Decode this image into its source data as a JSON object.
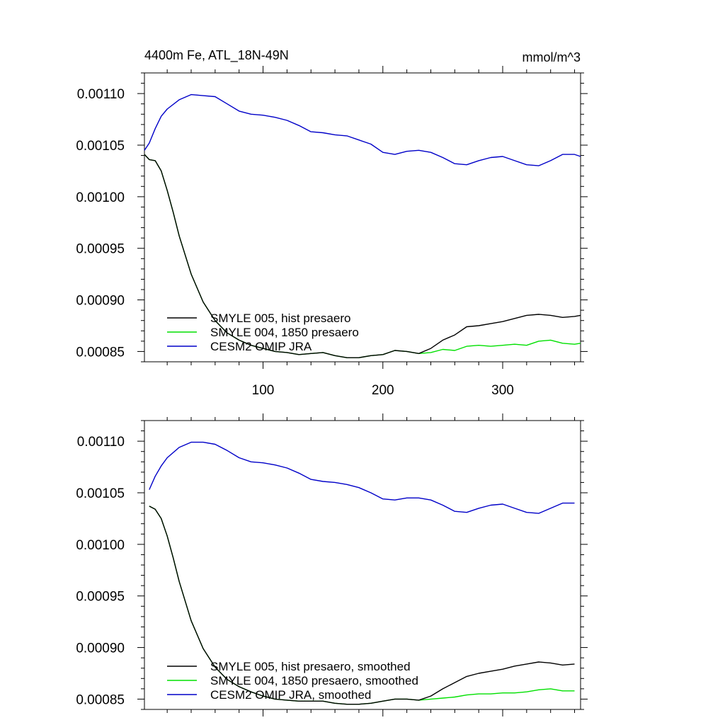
{
  "figure": {
    "left_title": "4400m Fe, ATL_18N-49N",
    "right_title": "mmol/m^3"
  },
  "chart_data": [
    {
      "type": "line",
      "title": "4400m Fe, ATL_18N-49N",
      "units": "mmol/m^3",
      "xlabel": "",
      "ylabel": "",
      "xlim": [
        1,
        365
      ],
      "ylim": [
        0.00084,
        0.00112
      ],
      "x_ticks": [
        100,
        200,
        300
      ],
      "x_tick_labels": [
        "100",
        "200",
        "300"
      ],
      "y_ticks": [
        0.00085,
        0.0009,
        0.00095,
        0.001,
        0.00105,
        0.0011
      ],
      "y_tick_labels": [
        "0.00085",
        "0.00090",
        "0.00095",
        "0.00100",
        "0.00105",
        "0.00110"
      ],
      "grid": false,
      "legend_position": "bottom-left",
      "series": [
        {
          "name": "SMYLE 005, hist presaero",
          "color": "#000000",
          "x": [
            1,
            5,
            10,
            15,
            20,
            25,
            30,
            40,
            50,
            60,
            70,
            80,
            90,
            100,
            110,
            120,
            130,
            140,
            150,
            160,
            170,
            180,
            190,
            200,
            210,
            220,
            230,
            240,
            250,
            260,
            270,
            280,
            290,
            300,
            310,
            320,
            330,
            340,
            350,
            360,
            365
          ],
          "y": [
            0.001041,
            0.001036,
            0.001035,
            0.001025,
            0.001006,
            0.000985,
            0.000962,
            0.000925,
            0.000898,
            0.00088,
            0.000868,
            0.000861,
            0.000856,
            0.000853,
            0.00085,
            0.000849,
            0.000847,
            0.000848,
            0.000849,
            0.000846,
            0.000844,
            0.000844,
            0.000846,
            0.000847,
            0.000851,
            0.00085,
            0.000848,
            0.000853,
            0.000861,
            0.000866,
            0.000874,
            0.000875,
            0.000877,
            0.000879,
            0.000882,
            0.000885,
            0.000886,
            0.000885,
            0.000883,
            0.000884,
            0.000885
          ]
        },
        {
          "name": "SMYLE 004, 1850 presaero",
          "color": "#00e000",
          "x": [
            1,
            5,
            10,
            15,
            20,
            25,
            30,
            40,
            50,
            60,
            70,
            80,
            90,
            100,
            110,
            120,
            130,
            140,
            150,
            160,
            170,
            180,
            190,
            200,
            210,
            220,
            230,
            240,
            250,
            260,
            270,
            280,
            290,
            300,
            310,
            320,
            330,
            340,
            350,
            360,
            365
          ],
          "y": [
            0.001041,
            0.001036,
            0.001035,
            0.001025,
            0.001006,
            0.000985,
            0.000962,
            0.000925,
            0.000898,
            0.00088,
            0.000868,
            0.000861,
            0.000856,
            0.000853,
            0.00085,
            0.000849,
            0.000847,
            0.000848,
            0.000849,
            0.000846,
            0.000844,
            0.000844,
            0.000846,
            0.000847,
            0.000851,
            0.00085,
            0.000848,
            0.000849,
            0.000852,
            0.000851,
            0.000855,
            0.000856,
            0.000855,
            0.000856,
            0.000857,
            0.000856,
            0.00086,
            0.000861,
            0.000858,
            0.000857,
            0.000858
          ]
        },
        {
          "name": "CESM2 OMIP JRA",
          "color": "#0000c8",
          "x": [
            1,
            5,
            10,
            15,
            20,
            30,
            40,
            50,
            60,
            70,
            80,
            90,
            100,
            110,
            120,
            130,
            140,
            150,
            160,
            170,
            180,
            190,
            200,
            210,
            220,
            230,
            240,
            250,
            260,
            270,
            280,
            290,
            300,
            310,
            320,
            330,
            340,
            350,
            360,
            365
          ],
          "y": [
            0.001045,
            0.001052,
            0.001066,
            0.001078,
            0.001085,
            0.001094,
            0.001099,
            0.001098,
            0.001097,
            0.00109,
            0.001083,
            0.00108,
            0.001079,
            0.001077,
            0.001074,
            0.001069,
            0.001063,
            0.001062,
            0.00106,
            0.001059,
            0.001055,
            0.001051,
            0.001043,
            0.001041,
            0.001044,
            0.001045,
            0.001043,
            0.001038,
            0.001032,
            0.001031,
            0.001035,
            0.001038,
            0.001039,
            0.001035,
            0.001031,
            0.00103,
            0.001035,
            0.001041,
            0.001041,
            0.001039
          ]
        }
      ]
    },
    {
      "type": "line",
      "title": "",
      "xlabel": "",
      "ylabel": "",
      "xlim": [
        1,
        365
      ],
      "ylim": [
        0.00084,
        0.00112
      ],
      "x_ticks": [
        100,
        200,
        300
      ],
      "y_ticks": [
        0.00085,
        0.0009,
        0.00095,
        0.001,
        0.00105,
        0.0011
      ],
      "y_tick_labels": [
        "0.00085",
        "0.00090",
        "0.00095",
        "0.00100",
        "0.00105",
        "0.00110"
      ],
      "grid": false,
      "legend_position": "bottom-left",
      "series": [
        {
          "name": "SMYLE 005, hist presaero, smoothed",
          "color": "#000000",
          "x": [
            5,
            10,
            15,
            20,
            25,
            30,
            40,
            50,
            60,
            70,
            80,
            90,
            100,
            110,
            120,
            130,
            140,
            150,
            160,
            170,
            180,
            190,
            200,
            210,
            220,
            230,
            240,
            250,
            260,
            270,
            280,
            290,
            300,
            310,
            320,
            330,
            340,
            350,
            360
          ],
          "y": [
            0.001037,
            0.001034,
            0.001025,
            0.001008,
            0.000987,
            0.000964,
            0.000926,
            0.000899,
            0.000881,
            0.000869,
            0.000862,
            0.000857,
            0.000853,
            0.00085,
            0.000849,
            0.000848,
            0.000848,
            0.000848,
            0.000846,
            0.000845,
            0.000845,
            0.000846,
            0.000848,
            0.00085,
            0.00085,
            0.000849,
            0.000853,
            0.00086,
            0.000866,
            0.000872,
            0.000875,
            0.000877,
            0.000879,
            0.000882,
            0.000884,
            0.000886,
            0.000885,
            0.000883,
            0.000884
          ]
        },
        {
          "name": "SMYLE 004, 1850 presaero, smoothed",
          "color": "#00e000",
          "x": [
            5,
            10,
            15,
            20,
            25,
            30,
            40,
            50,
            60,
            70,
            80,
            90,
            100,
            110,
            120,
            130,
            140,
            150,
            160,
            170,
            180,
            190,
            200,
            210,
            220,
            230,
            240,
            250,
            260,
            270,
            280,
            290,
            300,
            310,
            320,
            330,
            340,
            350,
            360
          ],
          "y": [
            0.001037,
            0.001034,
            0.001025,
            0.001008,
            0.000987,
            0.000964,
            0.000926,
            0.000899,
            0.000881,
            0.000869,
            0.000862,
            0.000857,
            0.000853,
            0.00085,
            0.000849,
            0.000848,
            0.000848,
            0.000848,
            0.000846,
            0.000845,
            0.000845,
            0.000846,
            0.000848,
            0.00085,
            0.00085,
            0.000849,
            0.00085,
            0.000851,
            0.000852,
            0.000854,
            0.000855,
            0.000855,
            0.000856,
            0.000856,
            0.000857,
            0.000859,
            0.00086,
            0.000858,
            0.000858
          ]
        },
        {
          "name": "CESM2 OMIP JRA, smoothed",
          "color": "#0000c8",
          "x": [
            5,
            10,
            15,
            20,
            30,
            40,
            50,
            60,
            70,
            80,
            90,
            100,
            110,
            120,
            130,
            140,
            150,
            160,
            170,
            180,
            190,
            200,
            210,
            220,
            230,
            240,
            250,
            260,
            270,
            280,
            290,
            300,
            310,
            320,
            330,
            340,
            350,
            360
          ],
          "y": [
            0.001053,
            0.001066,
            0.001076,
            0.001084,
            0.001094,
            0.001099,
            0.001099,
            0.001097,
            0.001091,
            0.001084,
            0.00108,
            0.001079,
            0.001077,
            0.001074,
            0.001069,
            0.001063,
            0.001061,
            0.00106,
            0.001058,
            0.001055,
            0.00105,
            0.001044,
            0.001043,
            0.001045,
            0.001045,
            0.001043,
            0.001038,
            0.001032,
            0.001031,
            0.001035,
            0.001038,
            0.001039,
            0.001035,
            0.001031,
            0.00103,
            0.001035,
            0.00104,
            0.00104
          ]
        }
      ]
    }
  ]
}
